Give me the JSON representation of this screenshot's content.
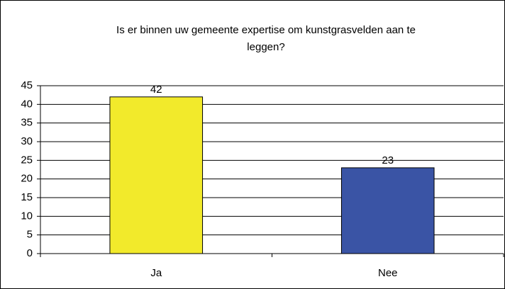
{
  "chart_data": {
    "type": "bar",
    "title": [
      "Is er binnen uw gemeente expertise om kunstgrasvelden aan te",
      "leggen?"
    ],
    "categories": [
      "Ja",
      "Nee"
    ],
    "values": [
      42,
      23
    ],
    "colors": [
      "#f2ea2b",
      "#3a54a5"
    ],
    "ylim": [
      0,
      45
    ],
    "yticks": [
      0,
      5,
      10,
      15,
      20,
      25,
      30,
      35,
      40,
      45
    ],
    "grid": true
  }
}
